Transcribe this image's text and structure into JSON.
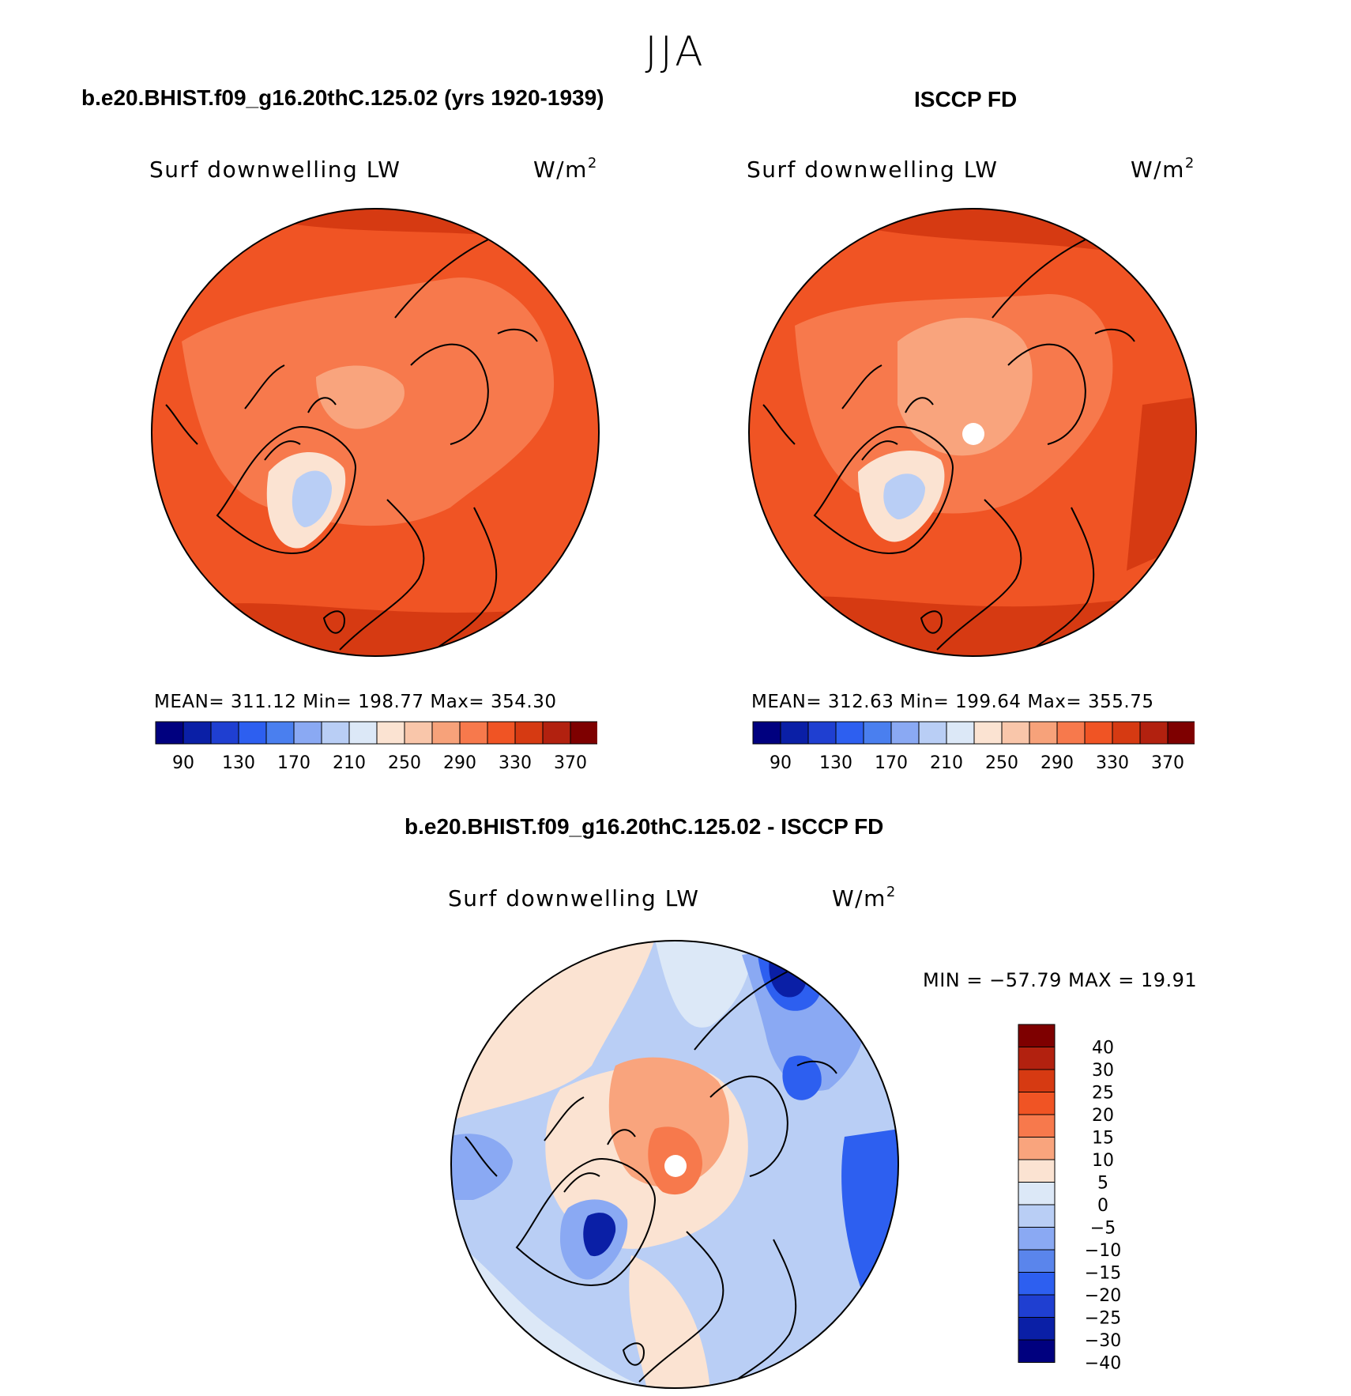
{
  "page_title": "JJA",
  "panels": {
    "model": {
      "title": "b.e20.BHIST.f09_g16.20thC.125.02 (yrs 1920-1939)",
      "variable": "Surf downwelling LW",
      "units_base": "W/m",
      "units_sup": "2",
      "stats": "MEAN= 311.12   Min= 198.77   Max= 354.30"
    },
    "obs": {
      "title": "ISCCP FD",
      "variable": "Surf downwelling LW",
      "units_base": "W/m",
      "units_sup": "2",
      "stats": "MEAN= 312.63   Min= 199.64   Max= 355.75"
    },
    "diff": {
      "title": "b.e20.BHIST.f09_g16.20thC.125.02 - ISCCP FD",
      "variable": "Surf downwelling LW",
      "units_base": "W/m",
      "units_sup": "2",
      "minmax": "MIN = −57.79 MAX =   19.91"
    }
  },
  "colorbar_abs": {
    "colors": [
      "#00007f",
      "#0a1fa6",
      "#1f3fd1",
      "#2d5ff0",
      "#4a7fef",
      "#8aa9f3",
      "#b9cef5",
      "#dce8f7",
      "#fbe3d2",
      "#f9c6aa",
      "#f7a27a",
      "#f7794c",
      "#f05424",
      "#d63a12",
      "#b2210f",
      "#7e0000"
    ],
    "tick_labels": [
      "90",
      "130",
      "170",
      "210",
      "250",
      "290",
      "330",
      "370"
    ]
  },
  "colorbar_diff": {
    "colors": [
      "#7e0000",
      "#b2210f",
      "#d63a12",
      "#f05424",
      "#f7794c",
      "#f9a47d",
      "#fbe3d2",
      "#dce8f7",
      "#b9cef5",
      "#8aa9f3",
      "#5a85ec",
      "#2d5ff0",
      "#1f3fd1",
      "#0a1fa6",
      "#00007f"
    ],
    "tick_labels": [
      "40",
      "30",
      "25",
      "20",
      "15",
      "10",
      "5",
      "0",
      "−5",
      "−10",
      "−15",
      "−20",
      "−25",
      "−30",
      "−40"
    ]
  },
  "map_colors": {
    "abs_background": "#f05424",
    "abs_rim": "#d63a12",
    "abs_mid": "#f7794c",
    "abs_light": "#f9a47d",
    "abs_pale": "#fbe3d2",
    "abs_cold": "#b9cef5",
    "diff_background": "#b9cef5",
    "diff_light": "#dce8f7",
    "diff_pos": "#fbe3d2",
    "diff_pos2": "#f9a47d",
    "diff_pos3": "#f7794c",
    "diff_neg": "#8aa9f3",
    "diff_neg2": "#2d5ff0",
    "diff_neg3": "#0a1fa6",
    "missing": "#ffffff"
  }
}
